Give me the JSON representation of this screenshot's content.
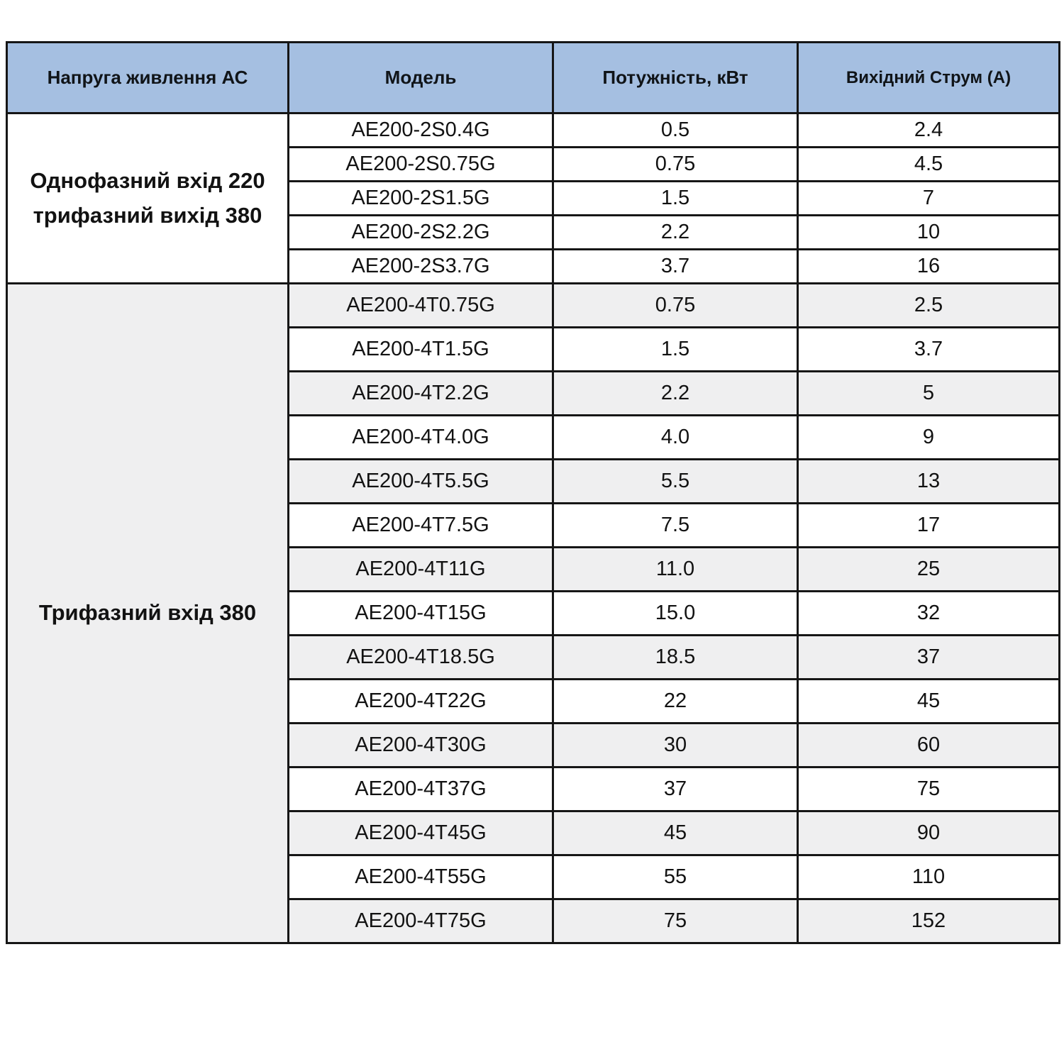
{
  "table": {
    "headers": [
      {
        "label": "Напруга живлення АС"
      },
      {
        "label": "Модель"
      },
      {
        "label": "Потужність, кВт"
      },
      {
        "label": "Вихідний Струм (А)"
      }
    ],
    "groups": [
      {
        "label": "Однофазний вхід 220\nтрифазний вихід 380",
        "rows": [
          {
            "model": "AE200-2S0.4G",
            "power": "0.5",
            "current": "2.4"
          },
          {
            "model": "AE200-2S0.75G",
            "power": "0.75",
            "current": "4.5"
          },
          {
            "model": "AE200-2S1.5G",
            "power": "1.5",
            "current": "7"
          },
          {
            "model": "AE200-2S2.2G",
            "power": "2.2",
            "current": "10"
          },
          {
            "model": "AE200-2S3.7G",
            "power": "3.7",
            "current": "16"
          }
        ]
      },
      {
        "label": "Трифазний вхід 380",
        "rows": [
          {
            "model": "AE200-4T0.75G",
            "power": "0.75",
            "current": "2.5"
          },
          {
            "model": "AE200-4T1.5G",
            "power": "1.5",
            "current": "3.7"
          },
          {
            "model": "AE200-4T2.2G",
            "power": "2.2",
            "current": "5"
          },
          {
            "model": "AE200-4T4.0G",
            "power": "4.0",
            "current": "9"
          },
          {
            "model": "AE200-4T5.5G",
            "power": "5.5",
            "current": "13"
          },
          {
            "model": "AE200-4T7.5G",
            "power": "7.5",
            "current": "17"
          },
          {
            "model": "AE200-4T11G",
            "power": "11.0",
            "current": "25"
          },
          {
            "model": "AE200-4T15G",
            "power": "15.0",
            "current": "32"
          },
          {
            "model": "AE200-4T18.5G",
            "power": "18.5",
            "current": "37"
          },
          {
            "model": "AE200-4T22G",
            "power": "22",
            "current": "45"
          },
          {
            "model": "AE200-4T30G",
            "power": "30",
            "current": "60"
          },
          {
            "model": "AE200-4T37G",
            "power": "37",
            "current": "75"
          },
          {
            "model": "AE200-4T45G",
            "power": "45",
            "current": "90"
          },
          {
            "model": "AE200-4T55G",
            "power": "55",
            "current": "110"
          },
          {
            "model": "AE200-4T75G",
            "power": "75",
            "current": "152"
          }
        ]
      }
    ],
    "colors": {
      "header_bg": "#a5bfe1",
      "row_bg": "#ffffff",
      "row_alt_bg": "#efeff0",
      "border": "#161616",
      "text": "#121212"
    }
  }
}
